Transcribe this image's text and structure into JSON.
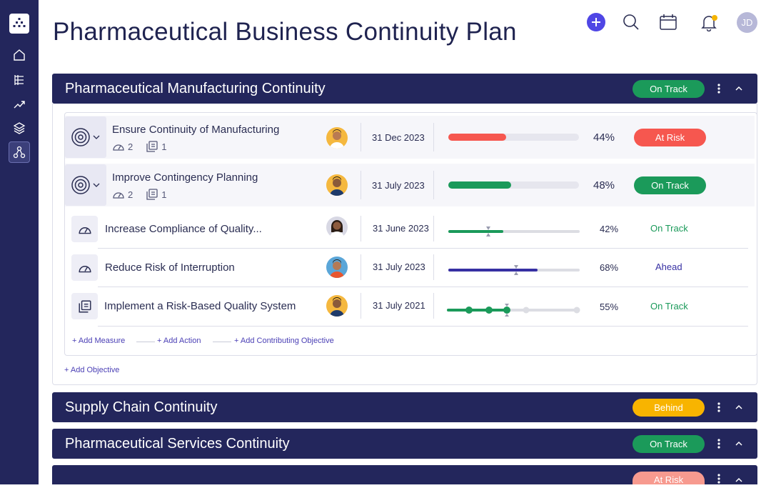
{
  "header": {
    "title": "Pharmaceutical Business Continuity Plan",
    "user_initials": "JD"
  },
  "sidebar": {
    "items": [
      {
        "icon": "home-icon"
      },
      {
        "icon": "list-tree-icon"
      },
      {
        "icon": "trend-up-icon"
      },
      {
        "icon": "layers-icon"
      },
      {
        "icon": "hierarchy-icon",
        "active": true
      }
    ]
  },
  "colors": {
    "navy": "#23265c",
    "on_track": "#1b9a5a",
    "at_risk": "#f6574f",
    "behind": "#f8b400",
    "ahead": "#3730a3",
    "accent": "#4f46e5"
  },
  "sections": [
    {
      "title": "Pharmaceutical Manufacturing Continuity",
      "status": "On Track"
    },
    {
      "title": "Supply Chain Continuity",
      "status": "Behind"
    },
    {
      "title": "Pharmaceutical Services Continuity",
      "status": "On Track"
    },
    {
      "title": "",
      "status": "At Risk"
    }
  ],
  "objectives": [
    {
      "title": "Ensure Continuity of Manufacturing",
      "measures": "2",
      "actions": "1",
      "date": "31 Dec 2023",
      "progress": 0.44,
      "percent": "44%",
      "status": "At Risk"
    },
    {
      "title": "Improve Contingency Planning",
      "measures": "2",
      "actions": "1",
      "date": "31 July 2023",
      "progress": 0.48,
      "percent": "48%",
      "status": "On Track"
    }
  ],
  "subitems": [
    {
      "title": "Increase Compliance of Quality...",
      "icon": "gauge-icon",
      "date": "31 June 2023",
      "progress": 0.42,
      "percent": "42%",
      "status": "On Track"
    },
    {
      "title": "Reduce Risk of Interruption",
      "icon": "gauge-icon",
      "date": "31 July 2023",
      "progress": 0.68,
      "percent": "68%",
      "status": "Ahead"
    },
    {
      "title": "Implement a Risk-Based Quality System",
      "icon": "action-stack-icon",
      "date": "31 July 2021",
      "progress": 0.55,
      "percent": "55%",
      "status": "On Track"
    }
  ],
  "links": {
    "add_measure": "+ Add Measure",
    "add_action": "+ Add Action",
    "add_contributing": "+ Add Contributing Objective",
    "add_objective": "+ Add Objective"
  }
}
